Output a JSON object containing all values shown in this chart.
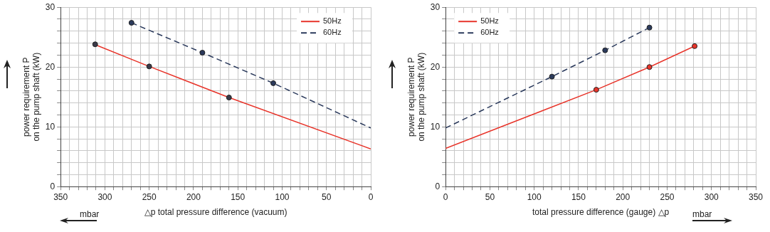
{
  "chart_data": [
    {
      "type": "line",
      "xlabel": "△p total pressure difference (vacuum)",
      "ylabel": "power requirement P\non the pump shaft (kW)",
      "annotations": [
        "mbar"
      ],
      "legend": "top right",
      "grid": true,
      "marker": "none",
      "xlim": [
        350,
        0
      ],
      "ylim": [
        0,
        30
      ],
      "xticks": [
        350,
        {
          "value": 340,
          "label": null
        },
        {
          "value": 330,
          "label": null
        },
        {
          "value": 320,
          "label": null
        },
        {
          "value": 310,
          "label": null
        },
        300,
        {
          "value": 290,
          "label": null
        },
        {
          "value": 280,
          "label": null
        },
        {
          "value": 270,
          "label": null
        },
        {
          "value": 260,
          "label": null
        },
        250,
        {
          "value": 240,
          "label": null
        },
        {
          "value": 230,
          "label": null
        },
        {
          "value": 220,
          "label": null
        },
        {
          "value": 210,
          "label": null
        },
        200,
        {
          "value": 190,
          "label": null
        },
        {
          "value": 180,
          "label": null
        },
        {
          "value": 170,
          "label": null
        },
        {
          "value": 160,
          "label": null
        },
        150,
        {
          "value": 140,
          "label": null
        },
        {
          "value": 130,
          "label": null
        },
        {
          "value": 120,
          "label": null
        },
        {
          "value": 110,
          "label": null
        },
        100,
        {
          "value": 90,
          "label": null
        },
        {
          "value": 80,
          "label": null
        },
        {
          "value": 70,
          "label": null
        },
        {
          "value": 60,
          "label": null
        },
        50,
        {
          "value": 40,
          "label": null
        },
        {
          "value": 30,
          "label": null
        },
        {
          "value": 20,
          "label": null
        },
        {
          "value": 10,
          "label": null
        },
        0
      ],
      "yticks": [
        0,
        {
          "value": 2,
          "label": null
        },
        {
          "value": 4,
          "label": null
        },
        {
          "value": 6,
          "label": null
        },
        {
          "value": 8,
          "label": null
        },
        10,
        {
          "value": 12,
          "label": null
        },
        {
          "value": 14,
          "label": null
        },
        {
          "value": 16,
          "label": null
        },
        {
          "value": 18,
          "label": null
        },
        20,
        {
          "value": 22,
          "label": null
        },
        {
          "value": 24,
          "label": null
        },
        {
          "value": 26,
          "label": null
        },
        {
          "value": 28,
          "label": null
        },
        30
      ],
      "series": [
        {
          "name": "50Hz",
          "color": "#e8352b",
          "line_style": "solid",
          "x": [
            312,
            250,
            160,
            0
          ],
          "values": [
            23.8,
            20.1,
            14.9,
            6.3
          ]
        },
        {
          "name": "60Hz",
          "color": "#2b3a5c",
          "line_style": "dashed",
          "x": [
            270,
            190,
            110,
            0
          ],
          "values": [
            27.4,
            22.4,
            17.3,
            9.8
          ]
        },
        {
          "type": "scatter",
          "marker": "circle",
          "color": "#3a3a48",
          "x": [
            311,
            250,
            160
          ],
          "values": [
            23.8,
            20.1,
            14.9
          ]
        },
        {
          "type": "scatter",
          "marker": "circle",
          "color": "#2b3a5c",
          "x": [
            270,
            190,
            110
          ],
          "values": [
            27.4,
            22.4,
            17.3
          ]
        }
      ]
    },
    {
      "type": "line",
      "xlabel": "total pressure difference (gauge) △p",
      "ylabel": "power requirement P\non the pump shaft (kW)",
      "annotations": [
        "mbar"
      ],
      "legend": "top left",
      "grid": true,
      "marker": "none",
      "xlim": [
        0,
        350
      ],
      "ylim": [
        0,
        30
      ],
      "xticks": [
        0,
        {
          "value": 10,
          "label": null
        },
        {
          "value": 20,
          "label": null
        },
        {
          "value": 30,
          "label": null
        },
        {
          "value": 40,
          "label": null
        },
        50,
        {
          "value": 60,
          "label": null
        },
        {
          "value": 70,
          "label": null
        },
        {
          "value": 80,
          "label": null
        },
        {
          "value": 90,
          "label": null
        },
        100,
        {
          "value": 110,
          "label": null
        },
        {
          "value": 120,
          "label": null
        },
        {
          "value": 130,
          "label": null
        },
        {
          "value": 140,
          "label": null
        },
        150,
        {
          "value": 160,
          "label": null
        },
        {
          "value": 170,
          "label": null
        },
        {
          "value": 180,
          "label": null
        },
        {
          "value": 190,
          "label": null
        },
        200,
        {
          "value": 210,
          "label": null
        },
        {
          "value": 220,
          "label": null
        },
        {
          "value": 230,
          "label": null
        },
        {
          "value": 240,
          "label": null
        },
        250,
        {
          "value": 260,
          "label": null
        },
        {
          "value": 270,
          "label": null
        },
        {
          "value": 280,
          "label": null
        },
        {
          "value": 290,
          "label": null
        },
        300,
        {
          "value": 310,
          "label": null
        },
        {
          "value": 320,
          "label": null
        },
        {
          "value": 330,
          "label": null
        },
        {
          "value": 340,
          "label": null
        },
        350
      ],
      "yticks": [
        0,
        {
          "value": 2,
          "label": null
        },
        {
          "value": 4,
          "label": null
        },
        {
          "value": 6,
          "label": null
        },
        {
          "value": 8,
          "label": null
        },
        10,
        {
          "value": 12,
          "label": null
        },
        {
          "value": 14,
          "label": null
        },
        {
          "value": 16,
          "label": null
        },
        {
          "value": 18,
          "label": null
        },
        20,
        {
          "value": 22,
          "label": null
        },
        {
          "value": 24,
          "label": null
        },
        {
          "value": 26,
          "label": null
        },
        {
          "value": 28,
          "label": null
        },
        30
      ],
      "series": [
        {
          "name": "50Hz",
          "color": "#e8352b",
          "line_style": "solid",
          "x": [
            0,
            170,
            230,
            281
          ],
          "values": [
            6.4,
            16.2,
            20,
            23.5
          ]
        },
        {
          "name": "60Hz",
          "color": "#2b3a5c",
          "line_style": "dashed",
          "x": [
            0,
            120,
            180,
            230
          ],
          "values": [
            9.8,
            18.4,
            22.8,
            26.6
          ]
        },
        {
          "type": "scatter",
          "marker": "circle",
          "color": "#e8352b",
          "x": [
            170,
            230,
            281
          ],
          "values": [
            16.2,
            20,
            23.5
          ]
        },
        {
          "type": "scatter",
          "marker": "circle",
          "color": "#2b3a5c",
          "x": [
            120,
            180,
            230
          ],
          "values": [
            18.4,
            22.8,
            26.6
          ]
        }
      ]
    }
  ]
}
